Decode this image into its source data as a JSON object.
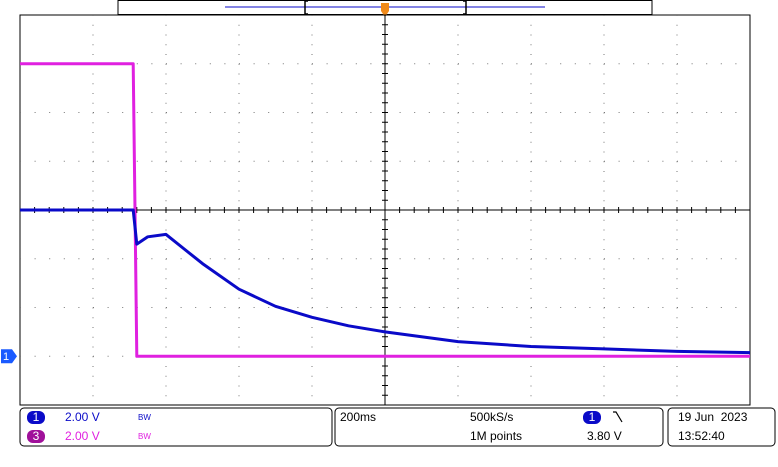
{
  "chart_data": {
    "type": "line",
    "x": [
      -1,
      -0.69,
      -0.68,
      -0.65,
      -0.6,
      -0.55,
      -0.5,
      -0.4,
      -0.3,
      -0.2,
      -0.1,
      0,
      0.2,
      0.4,
      0.6,
      0.8,
      1
    ],
    "series": [
      {
        "name": "1",
        "color": "#0a0ac8",
        "values": [
          6,
          6,
          4.6,
          4.9,
          5,
          4.4,
          3.8,
          2.75,
          2.05,
          1.6,
          1.25,
          1,
          0.6,
          0.4,
          0.3,
          0.2,
          0.15
        ]
      },
      {
        "name": "3",
        "color": "#e020e0",
        "values": [
          12,
          12,
          0,
          0,
          0,
          0,
          0,
          0,
          0,
          0,
          0,
          0,
          0,
          0,
          0,
          0,
          0
        ]
      }
    ],
    "xlim": [
      -1,
      1
    ],
    "ylim": [
      -2,
      14
    ],
    "grid": true
  },
  "status_bar": {
    "channels": [
      {
        "number": "1",
        "scale": "2.00 V",
        "bandwidth": "BW"
      },
      {
        "number": "3",
        "scale": "2.00 V",
        "bandwidth": "BW"
      }
    ],
    "timebase": "200ms",
    "sample_rate": "500kS/s",
    "record_length": "1M points",
    "trigger_source": "1",
    "trigger_level": "3.80 V",
    "date": "19 Jun  2023",
    "time": "13:52:40"
  }
}
